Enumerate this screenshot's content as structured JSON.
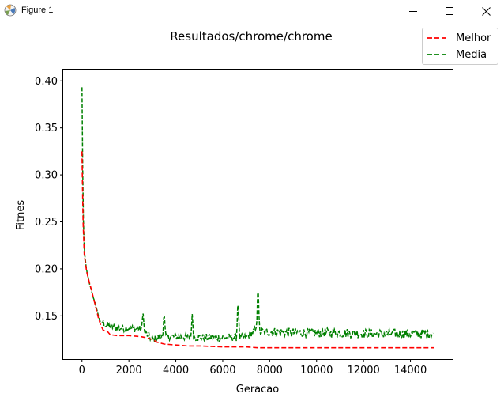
{
  "window": {
    "title": "Figure 1",
    "icons": [
      "matplotlib-icon",
      "minimize-icon",
      "maximize-icon",
      "close-icon"
    ]
  },
  "chart_data": {
    "type": "line",
    "title": "Resultados/chrome/chrome",
    "xlabel": "Geracao",
    "ylabel": "Fitnes",
    "xlim": [
      -800,
      15800
    ],
    "ylim": [
      0.104,
      0.412
    ],
    "xticks": [
      0,
      2000,
      4000,
      6000,
      8000,
      10000,
      12000,
      14000
    ],
    "xtick_labels": [
      "0",
      "2000",
      "4000",
      "6000",
      "8000",
      "10000",
      "12000",
      "14000"
    ],
    "yticks": [
      0.15,
      0.2,
      0.25,
      0.3,
      0.35,
      0.4
    ],
    "ytick_labels": [
      "0.15",
      "0.20",
      "0.25",
      "0.30",
      "0.35",
      "0.40"
    ],
    "grid": false,
    "legend_position": "top-right, outside plot",
    "series": [
      {
        "name": "Melhor",
        "color": "#ff0000",
        "style": "dashed",
        "x": [
          0,
          20,
          50,
          100,
          200,
          300,
          400,
          500,
          600,
          700,
          800,
          900,
          1000,
          1100,
          1200,
          1500,
          2000,
          2500,
          2700,
          3000,
          3200,
          3500,
          4000,
          4500,
          5000,
          6000,
          7000,
          7500,
          8000,
          10000,
          12000,
          14000,
          15000
        ],
        "y": [
          0.325,
          0.29,
          0.25,
          0.215,
          0.197,
          0.187,
          0.178,
          0.168,
          0.158,
          0.148,
          0.14,
          0.135,
          0.134,
          0.133,
          0.13,
          0.129,
          0.129,
          0.128,
          0.127,
          0.125,
          0.122,
          0.12,
          0.119,
          0.118,
          0.118,
          0.117,
          0.117,
          0.116,
          0.116,
          0.116,
          0.116,
          0.116,
          0.116
        ]
      },
      {
        "name": "Media",
        "color": "#008000",
        "style": "dashed",
        "x": [
          0,
          20,
          50,
          100,
          200,
          300,
          400,
          500,
          600,
          700,
          800,
          900,
          1000,
          1500,
          2000,
          2500,
          3000,
          3400,
          4000,
          5000,
          6000,
          7000,
          7400,
          7500,
          8000,
          9000,
          10000,
          11000,
          12000,
          13000,
          14000,
          15000
        ],
        "y": [
          0.393,
          0.33,
          0.26,
          0.218,
          0.198,
          0.186,
          0.177,
          0.168,
          0.16,
          0.15,
          0.142,
          0.143,
          0.14,
          0.137,
          0.137,
          0.136,
          0.125,
          0.128,
          0.128,
          0.127,
          0.127,
          0.127,
          0.135,
          0.133,
          0.133,
          0.132,
          0.132,
          0.132,
          0.131,
          0.131,
          0.131,
          0.131
        ]
      }
    ],
    "media_spikes": [
      {
        "x": 2600,
        "y": 0.155
      },
      {
        "x": 3500,
        "y": 0.155
      },
      {
        "x": 4700,
        "y": 0.153
      },
      {
        "x": 6650,
        "y": 0.171
      },
      {
        "x": 7500,
        "y": 0.189
      }
    ]
  }
}
